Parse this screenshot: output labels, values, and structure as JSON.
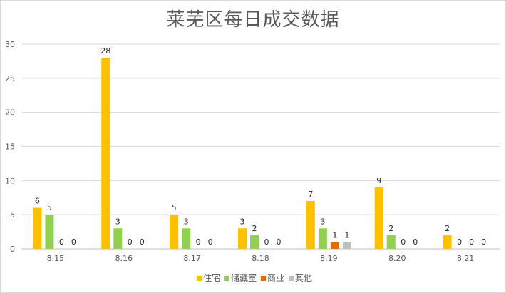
{
  "chart_data": {
    "type": "bar",
    "title": "莱芜区每日成交数据",
    "categories": [
      "8.15",
      "8.16",
      "8.17",
      "8.18",
      "8.19",
      "8.20",
      "8.21"
    ],
    "series": [
      {
        "name": "住宅",
        "values": [
          6,
          28,
          5,
          3,
          7,
          9,
          2
        ],
        "color": "#ffc000"
      },
      {
        "name": "储藏室",
        "values": [
          5,
          3,
          3,
          2,
          3,
          2,
          0
        ],
        "color": "#92d050"
      },
      {
        "name": "商业",
        "values": [
          0,
          0,
          0,
          0,
          1,
          0,
          0
        ],
        "color": "#e36c09"
      },
      {
        "name": "其他",
        "values": [
          0,
          0,
          0,
          0,
          1,
          0,
          0
        ],
        "color": "#bfbfbf"
      }
    ],
    "y_ticks": [
      0,
      5,
      10,
      15,
      20,
      25,
      30
    ],
    "ylim": [
      0,
      30
    ],
    "grid": true,
    "legend_position": "bottom",
    "data_labels": true
  }
}
